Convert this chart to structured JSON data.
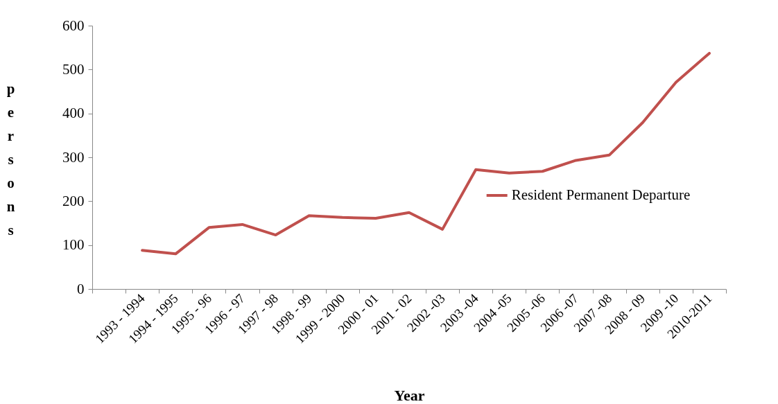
{
  "chart_data": {
    "type": "line",
    "xlabel": "Year",
    "ylabel": "persons",
    "categories": [
      null,
      "1993 - 1994",
      "1994 - 1995",
      "1995 - 96",
      "1996 - 97",
      "1997 - 98",
      "1998 - 99",
      "1999 - 2000",
      "2000 - 01",
      "2001 - 02",
      "2002 -03",
      "2003 -04",
      "2004 -05",
      "2005 -06",
      "2006 -07",
      "2007 -08",
      "2008 - 09",
      "2009 -10",
      "2010-2011"
    ],
    "series": [
      {
        "name": "Resident Permanent Departure",
        "color": "#c0504d",
        "values": [
          null,
          88,
          80,
          140,
          147,
          123,
          167,
          163,
          161,
          174,
          136,
          272,
          264,
          268,
          293,
          305,
          379,
          471,
          537
        ]
      }
    ],
    "ylim": [
      0,
      600
    ],
    "yticks": [
      0,
      100,
      200,
      300,
      400,
      500,
      600
    ],
    "grid": false,
    "legend": "right",
    "marker": "none",
    "line_style": "solid"
  }
}
